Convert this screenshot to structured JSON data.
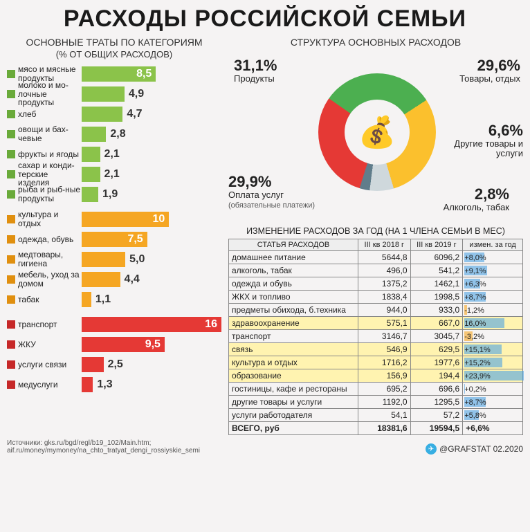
{
  "title": "РАСХОДЫ РОССИЙСКОЙ СЕМЬИ",
  "left_title": "ОСНОВНЫЕ ТРАТЫ ПО КАТЕГОРИЯМ",
  "left_sub": "(% ОТ ОБЩИХ РАСХОДОВ)",
  "bar_max": 16,
  "groups": [
    {
      "color_fill": "#8bc34a",
      "color_marker": "#6aaa3a",
      "bars": [
        {
          "label": "мясо и мясные продукты",
          "value": 8.5,
          "disp": "8,5",
          "val_inside": true
        },
        {
          "label": "молоко и мо-лочные продукты",
          "value": 4.9,
          "disp": "4,9",
          "val_inside": false
        },
        {
          "label": "хлеб",
          "value": 4.7,
          "disp": "4,7",
          "val_inside": false
        },
        {
          "label": "овощи и бах-чевые",
          "value": 2.8,
          "disp": "2,8",
          "val_inside": false
        },
        {
          "label": "фрукты и ягоды",
          "value": 2.1,
          "disp": "2,1",
          "val_inside": false
        },
        {
          "label": "сахар и конди-терские изделия",
          "value": 2.1,
          "disp": "2,1",
          "val_inside": false
        },
        {
          "label": "рыба и рыб-ные продукты",
          "value": 1.9,
          "disp": "1,9",
          "val_inside": false
        }
      ]
    },
    {
      "color_fill": "#f5a623",
      "color_marker": "#e08f0f",
      "bars": [
        {
          "label": "культура и отдых",
          "value": 10,
          "disp": "10",
          "val_inside": true
        },
        {
          "label": "одежда, обувь",
          "value": 7.5,
          "disp": "7,5",
          "val_inside": true
        },
        {
          "label": "медтовары, гигиена",
          "value": 5.0,
          "disp": "5,0",
          "val_inside": false
        },
        {
          "label": "мебель, уход за домом",
          "value": 4.4,
          "disp": "4,4",
          "val_inside": false
        },
        {
          "label": "табак",
          "value": 1.1,
          "disp": "1,1",
          "val_inside": false
        }
      ]
    },
    {
      "color_fill": "#e53935",
      "color_marker": "#c62828",
      "bars": [
        {
          "label": "транспорт",
          "value": 16,
          "disp": "16",
          "val_inside": true
        },
        {
          "label": "ЖКУ",
          "value": 9.5,
          "disp": "9,5",
          "val_inside": true
        },
        {
          "label": "услуги связи",
          "value": 2.5,
          "disp": "2,5",
          "val_inside": false
        },
        {
          "label": "медуслуги",
          "value": 1.3,
          "disp": "1,3",
          "val_inside": false
        }
      ]
    }
  ],
  "donut_title": "СТРУКТУРА ОСНОВНЫХ РАСХОДОВ",
  "donut": {
    "slices": [
      {
        "pct": 31.1,
        "color": "#4caf50",
        "label": "Продукты",
        "disp": "31,1%",
        "pos": "tl"
      },
      {
        "pct": 29.6,
        "color": "#fbc02d",
        "label": "Товары, отдых",
        "disp": "29,6%",
        "pos": "tr"
      },
      {
        "pct": 6.6,
        "color": "#cfd8dc",
        "label": "Другие товары и услуги",
        "disp": "6,6%",
        "pos": "mr"
      },
      {
        "pct": 2.8,
        "color": "#607d8b",
        "label": "Алкоголь, табак",
        "disp": "2,8%",
        "pos": "br"
      },
      {
        "pct": 29.9,
        "color": "#e53935",
        "label": "Оплата услуг",
        "sublabel": "(обязательные платежи)",
        "disp": "29,9%",
        "pos": "bl"
      }
    ],
    "center_icon": "💰"
  },
  "table_title": "ИЗМЕНЕНИЕ РАСХОДОВ ЗА ГОД (НА 1 ЧЛЕНА СЕМЬИ В МЕС)",
  "table": {
    "cols": [
      "СТАТЬЯ РАСХОДОВ",
      "III кв 2018 г",
      "III кв 2019 г",
      "измен. за год"
    ],
    "max_abs_chg": 23.9,
    "rows": [
      {
        "name": "домашнее питание",
        "v18": "5644,8",
        "v19": "6096,2",
        "chg": 8.0,
        "disp": "+8,0%",
        "hl": false
      },
      {
        "name": "алкоголь, табак",
        "v18": "496,0",
        "v19": "541,2",
        "chg": 9.1,
        "disp": "+9,1%",
        "hl": false
      },
      {
        "name": "одежда и обувь",
        "v18": "1375,2",
        "v19": "1462,1",
        "chg": 6.3,
        "disp": "+6,3%",
        "hl": false
      },
      {
        "name": "ЖКХ и топливо",
        "v18": "1838,4",
        "v19": "1998,5",
        "chg": 8.7,
        "disp": "+8,7%",
        "hl": false
      },
      {
        "name": "предметы обихода, б.техника",
        "v18": "944,0",
        "v19": "933,0",
        "chg": -1.2,
        "disp": "-1,2%",
        "hl": false
      },
      {
        "name": "здравоохранение",
        "v18": "575,1",
        "v19": "667,0",
        "chg": 16.0,
        "disp": "16,0%",
        "hl": true
      },
      {
        "name": "транспорт",
        "v18": "3146,7",
        "v19": "3045,7",
        "chg": -3.2,
        "disp": "-3,2%",
        "hl": false
      },
      {
        "name": "связь",
        "v18": "546,9",
        "v19": "629,5",
        "chg": 15.1,
        "disp": "+15,1%",
        "hl": true
      },
      {
        "name": "культура и отдых",
        "v18": "1716,2",
        "v19": "1977,6",
        "chg": 15.2,
        "disp": "+15,2%",
        "hl": true
      },
      {
        "name": "образование",
        "v18": "156,9",
        "v19": "194,4",
        "chg": 23.9,
        "disp": "+23,9%",
        "hl": true
      },
      {
        "name": "гостиницы, кафе и рестораны",
        "v18": "695,2",
        "v19": "696,6",
        "chg": 0.2,
        "disp": "+0,2%",
        "hl": false
      },
      {
        "name": "другие товары и услуги",
        "v18": "1192,0",
        "v19": "1295,5",
        "chg": 8.7,
        "disp": "+8,7%",
        "hl": false
      },
      {
        "name": "услуги работодателя",
        "v18": "54,1",
        "v19": "57,2",
        "chg": 5.8,
        "disp": "+5,8%",
        "hl": false
      }
    ],
    "total": {
      "name": "ВСЕГО, руб",
      "v18": "18381,6",
      "v19": "19594,5",
      "disp": "+6,6%"
    }
  },
  "sources_label": "Источники:",
  "sources": [
    "gks.ru/bgd/regl/b19_102/Main.htm;",
    "aif.ru/money/mymoney/na_chto_tratyat_dengi_rossiyskie_semi"
  ],
  "credit": "@GRAFSTAT 02.2020",
  "colors": {
    "pos_bar": "#4fa3e3",
    "neg_bar": "#f5a623"
  }
}
